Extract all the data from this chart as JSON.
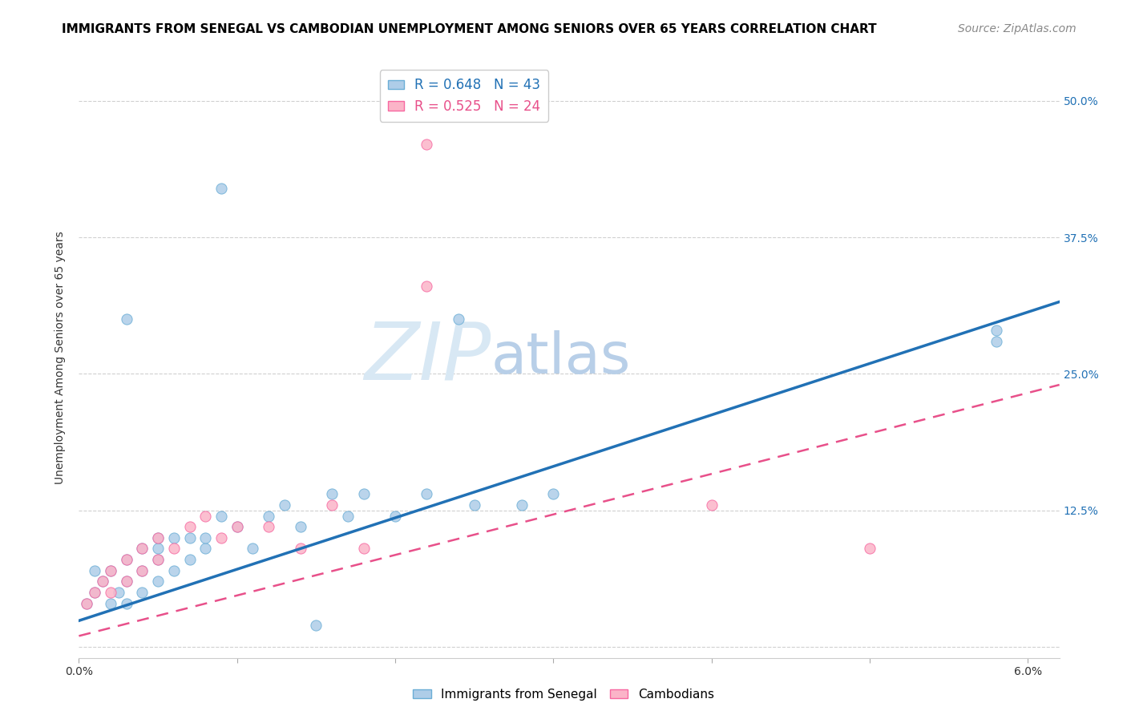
{
  "title": "IMMIGRANTS FROM SENEGAL VS CAMBODIAN UNEMPLOYMENT AMONG SENIORS OVER 65 YEARS CORRELATION CHART",
  "source": "Source: ZipAtlas.com",
  "ylabel": "Unemployment Among Seniors over 65 years",
  "xlim": [
    0.0,
    0.062
  ],
  "ylim": [
    -0.01,
    0.54
  ],
  "yticks": [
    0.0,
    0.125,
    0.25,
    0.375,
    0.5
  ],
  "ytick_labels": [
    "",
    "12.5%",
    "25.0%",
    "37.5%",
    "50.0%"
  ],
  "xticks": [
    0.0,
    0.01,
    0.02,
    0.03,
    0.04,
    0.05,
    0.06
  ],
  "xtick_labels": [
    "0.0%",
    "",
    "",
    "",
    "",
    "",
    "6.0%"
  ],
  "background_color": "#ffffff",
  "grid_color": "#d0d0d0",
  "watermark_zip": "ZIP",
  "watermark_atlas": "atlas",
  "legend_line1": "R = 0.648   N = 43",
  "legend_line2": "R = 0.525   N = 24",
  "senegal_x": [
    0.0005,
    0.001,
    0.001,
    0.0015,
    0.002,
    0.002,
    0.0025,
    0.003,
    0.003,
    0.003,
    0.004,
    0.004,
    0.004,
    0.005,
    0.005,
    0.005,
    0.005,
    0.006,
    0.006,
    0.007,
    0.007,
    0.008,
    0.008,
    0.009,
    0.01,
    0.011,
    0.012,
    0.013,
    0.014,
    0.015,
    0.016,
    0.017,
    0.018,
    0.02,
    0.022,
    0.024,
    0.025,
    0.028,
    0.03,
    0.058,
    0.058,
    0.003,
    0.009
  ],
  "senegal_y": [
    0.04,
    0.05,
    0.07,
    0.06,
    0.04,
    0.07,
    0.05,
    0.04,
    0.06,
    0.08,
    0.05,
    0.07,
    0.09,
    0.06,
    0.08,
    0.09,
    0.1,
    0.07,
    0.1,
    0.08,
    0.1,
    0.09,
    0.1,
    0.12,
    0.11,
    0.09,
    0.12,
    0.13,
    0.11,
    0.02,
    0.14,
    0.12,
    0.14,
    0.12,
    0.14,
    0.3,
    0.13,
    0.13,
    0.14,
    0.28,
    0.29,
    0.3,
    0.42
  ],
  "cambodian_x": [
    0.0005,
    0.001,
    0.0015,
    0.002,
    0.002,
    0.003,
    0.003,
    0.004,
    0.004,
    0.005,
    0.005,
    0.006,
    0.007,
    0.008,
    0.009,
    0.01,
    0.012,
    0.014,
    0.016,
    0.018,
    0.022,
    0.022,
    0.04,
    0.05
  ],
  "cambodian_y": [
    0.04,
    0.05,
    0.06,
    0.05,
    0.07,
    0.06,
    0.08,
    0.07,
    0.09,
    0.08,
    0.1,
    0.09,
    0.11,
    0.12,
    0.1,
    0.11,
    0.11,
    0.09,
    0.13,
    0.09,
    0.46,
    0.33,
    0.13,
    0.09
  ],
  "senegal_line_color": "#2171b5",
  "senegal_line_x": [
    0.0,
    0.062
  ],
  "senegal_line_y": [
    0.024,
    0.316
  ],
  "cambodian_line_color": "#e8508a",
  "cambodian_line_x": [
    0.0,
    0.062
  ],
  "cambodian_line_y": [
    0.01,
    0.24
  ],
  "title_fontsize": 11,
  "source_fontsize": 10,
  "ylabel_fontsize": 10,
  "tick_fontsize": 10,
  "legend_fontsize": 12,
  "right_tick_color": "#2171b5",
  "senegal_color": "#aecde8",
  "senegal_edge": "#6baed6",
  "cambodian_color": "#fbb4c8",
  "cambodian_edge": "#f768a1",
  "marker_size": 90
}
